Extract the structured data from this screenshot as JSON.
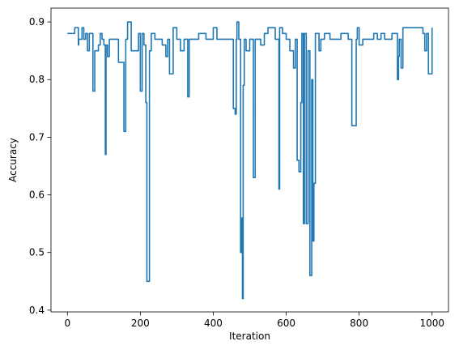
{
  "chart_data": {
    "type": "line",
    "title": "",
    "xlabel": "Iteration",
    "ylabel": "Accuracy",
    "xlim": [
      -45,
      1045
    ],
    "ylim": [
      0.397,
      0.924
    ],
    "xticks": [
      0,
      200,
      400,
      600,
      800,
      1000
    ],
    "yticks": [
      0.4,
      0.5,
      0.6,
      0.7,
      0.8,
      0.9
    ],
    "grid": false,
    "legend": "none",
    "series": [
      {
        "color": "#1f77b4",
        "step": true,
        "x": [
          0,
          20,
          30,
          31,
          35,
          40,
          45,
          50,
          55,
          60,
          62,
          65,
          70,
          75,
          77,
          80,
          85,
          90,
          95,
          100,
          104,
          106,
          110,
          115,
          118,
          120,
          125,
          130,
          140,
          150,
          155,
          157,
          160,
          165,
          175,
          185,
          195,
          200,
          205,
          210,
          215,
          218,
          220,
          222,
          225,
          228,
          230,
          240,
          250,
          260,
          270,
          275,
          280,
          290,
          300,
          310,
          320,
          330,
          334,
          336,
          340,
          350,
          360,
          380,
          390,
          400,
          410,
          420,
          430,
          440,
          450,
          455,
          460,
          463,
          465,
          470,
          475,
          478,
          480,
          482,
          485,
          490,
          500,
          510,
          515,
          517,
          520,
          530,
          540,
          550,
          560,
          570,
          580,
          582,
          585,
          590,
          600,
          610,
          620,
          625,
          630,
          635,
          640,
          643,
          647,
          650,
          655,
          660,
          665,
          670,
          673,
          676,
          680,
          685,
          690,
          693,
          695,
          700,
          705,
          710,
          715,
          720,
          730,
          740,
          750,
          760,
          770,
          780,
          790,
          792,
          795,
          800,
          810,
          820,
          830,
          840,
          850,
          860,
          870,
          880,
          890,
          900,
          905,
          908,
          910,
          915,
          920,
          925,
          940,
          960,
          975,
          980,
          985,
          990,
          995,
          1000
        ],
        "values": [
          0.88,
          0.89,
          0.86,
          0.87,
          0.87,
          0.89,
          0.87,
          0.88,
          0.85,
          0.88,
          0.88,
          0.88,
          0.78,
          0.85,
          0.85,
          0.85,
          0.86,
          0.88,
          0.87,
          0.86,
          0.67,
          0.86,
          0.84,
          0.87,
          0.87,
          0.87,
          0.87,
          0.87,
          0.83,
          0.83,
          0.71,
          0.71,
          0.87,
          0.9,
          0.85,
          0.85,
          0.88,
          0.78,
          0.88,
          0.86,
          0.76,
          0.45,
          0.45,
          0.45,
          0.85,
          0.85,
          0.88,
          0.87,
          0.87,
          0.86,
          0.84,
          0.87,
          0.81,
          0.89,
          0.87,
          0.85,
          0.87,
          0.77,
          0.87,
          0.87,
          0.87,
          0.87,
          0.88,
          0.87,
          0.87,
          0.89,
          0.87,
          0.87,
          0.87,
          0.87,
          0.87,
          0.75,
          0.74,
          0.87,
          0.9,
          0.87,
          0.5,
          0.56,
          0.42,
          0.79,
          0.87,
          0.85,
          0.87,
          0.63,
          0.87,
          0.87,
          0.87,
          0.86,
          0.88,
          0.89,
          0.89,
          0.87,
          0.61,
          0.89,
          0.89,
          0.88,
          0.87,
          0.85,
          0.82,
          0.87,
          0.66,
          0.64,
          0.76,
          0.88,
          0.55,
          0.88,
          0.55,
          0.85,
          0.46,
          0.8,
          0.52,
          0.62,
          0.88,
          0.88,
          0.85,
          0.85,
          0.87,
          0.87,
          0.88,
          0.88,
          0.88,
          0.87,
          0.87,
          0.87,
          0.88,
          0.88,
          0.87,
          0.72,
          0.72,
          0.87,
          0.89,
          0.86,
          0.87,
          0.87,
          0.87,
          0.88,
          0.87,
          0.88,
          0.87,
          0.87,
          0.88,
          0.88,
          0.8,
          0.84,
          0.87,
          0.82,
          0.89,
          0.89,
          0.89,
          0.89,
          0.88,
          0.85,
          0.88,
          0.81,
          0.81,
          0.89
        ]
      }
    ]
  }
}
